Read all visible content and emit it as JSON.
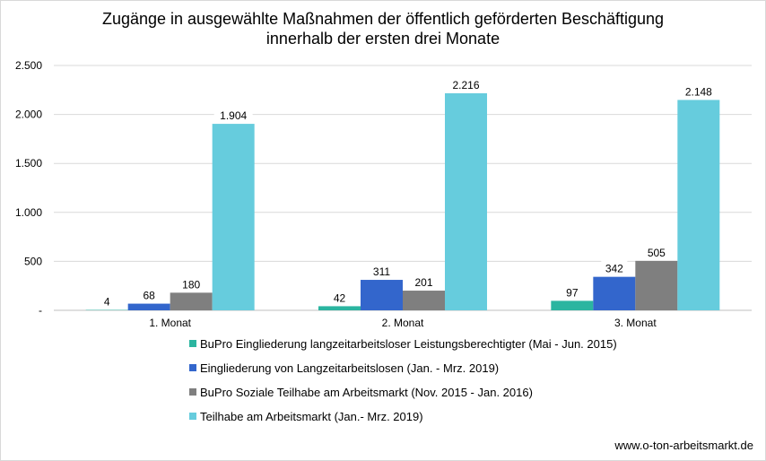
{
  "chart_data": {
    "type": "bar",
    "title_line1": "Zugänge in ausgewählte Maßnahmen der öffentlich geförderten Beschäftigung",
    "title_line2": "innerhalb der ersten drei Monate",
    "categories": [
      "1. Monat",
      "2. Monat",
      "3. Monat"
    ],
    "ylim": [
      0,
      2500
    ],
    "yticks": [
      {
        "value": 0,
        "label": "-"
      },
      {
        "value": 500,
        "label": "500"
      },
      {
        "value": 1000,
        "label": "1.000"
      },
      {
        "value": 1500,
        "label": "1.500"
      },
      {
        "value": 2000,
        "label": "2.000"
      },
      {
        "value": 2500,
        "label": "2.500"
      }
    ],
    "grid": true,
    "legend_position": "bottom",
    "series": [
      {
        "name": "BuPro Eingliederung langzeitarbeitsloser Leistungsberechtigter (Mai - Jun. 2015)",
        "color": "#2bb5a0",
        "values": [
          4,
          42,
          97
        ],
        "labels": [
          "4",
          "42",
          "97"
        ]
      },
      {
        "name": "Eingliederung von Langzeitarbeitslosen (Jan. - Mrz. 2019)",
        "color": "#3366cc",
        "values": [
          68,
          311,
          342
        ],
        "labels": [
          "68",
          "311",
          "342"
        ]
      },
      {
        "name": "BuPro Soziale Teilhabe am Arbeitsmarkt (Nov. 2015 - Jan. 2016)",
        "color": "#7f7f7f",
        "values": [
          180,
          201,
          505
        ],
        "labels": [
          "180",
          "201",
          "505"
        ]
      },
      {
        "name": "Teilhabe am Arbeitsmarkt (Jan.- Mrz. 2019)",
        "color": "#66ccdd",
        "values": [
          1904,
          2216,
          2148
        ],
        "labels": [
          "1.904",
          "2.216",
          "2.148"
        ]
      }
    ]
  },
  "source": "www.o-ton-arbeitsmarkt.de"
}
